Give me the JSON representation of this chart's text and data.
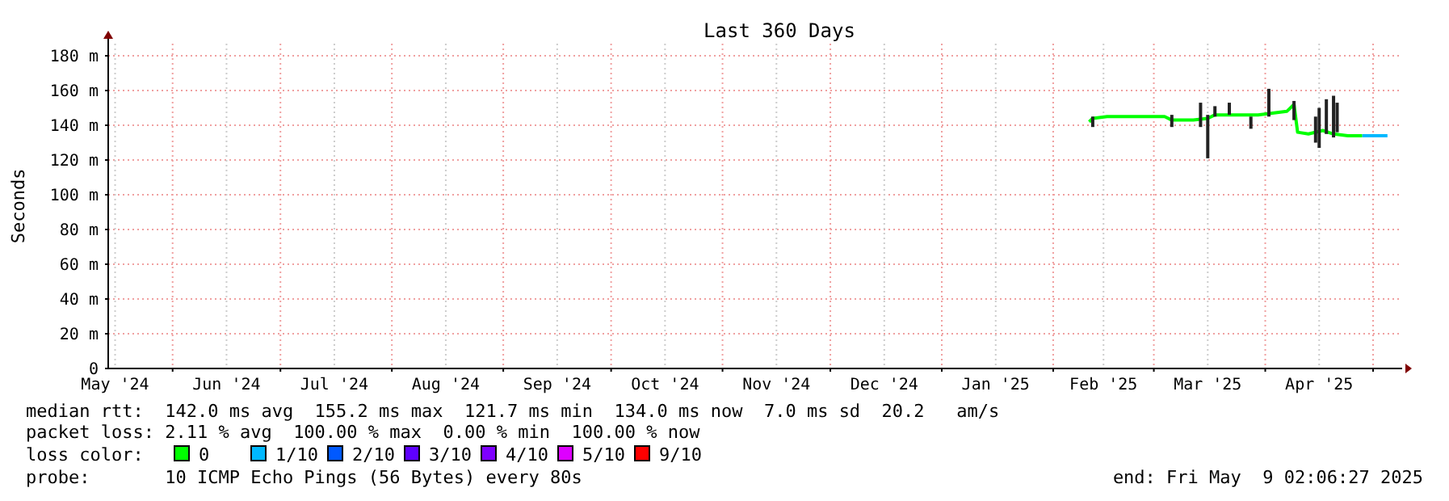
{
  "chart_data": {
    "type": "line",
    "title": "Last 360 Days",
    "ylabel": "Seconds",
    "xlim": [
      "2024-05-14T02:06",
      "2025-05-09T02:06"
    ],
    "ylim": [
      0,
      187
    ],
    "yticks": [
      {
        "value": 0,
        "label": "0"
      },
      {
        "value": 20,
        "label": "20 m"
      },
      {
        "value": 40,
        "label": "40 m"
      },
      {
        "value": 60,
        "label": "60 m"
      },
      {
        "value": 80,
        "label": "80 m"
      },
      {
        "value": 100,
        "label": "100 m"
      },
      {
        "value": 120,
        "label": "120 m"
      },
      {
        "value": 140,
        "label": "140 m"
      },
      {
        "value": 160,
        "label": "160 m"
      },
      {
        "value": 180,
        "label": "180 m"
      }
    ],
    "xticks": [
      {
        "value": "2024-05-16",
        "label": "May '24"
      },
      {
        "value": "2024-06-01",
        "label": null
      },
      {
        "value": "2024-06-16",
        "label": "Jun '24"
      },
      {
        "value": "2024-07-01",
        "label": null
      },
      {
        "value": "2024-07-16",
        "label": "Jul '24"
      },
      {
        "value": "2024-08-01",
        "label": null
      },
      {
        "value": "2024-08-16",
        "label": "Aug '24"
      },
      {
        "value": "2024-09-01",
        "label": null
      },
      {
        "value": "2024-09-16",
        "label": "Sep '24"
      },
      {
        "value": "2024-10-01",
        "label": null
      },
      {
        "value": "2024-10-16",
        "label": "Oct '24"
      },
      {
        "value": "2024-11-01",
        "label": null
      },
      {
        "value": "2024-11-16",
        "label": "Nov '24"
      },
      {
        "value": "2024-12-01",
        "label": null
      },
      {
        "value": "2024-12-16",
        "label": "Dec '24"
      },
      {
        "value": "2025-01-01",
        "label": null
      },
      {
        "value": "2025-01-16",
        "label": "Jan '25"
      },
      {
        "value": "2025-02-01",
        "label": null
      },
      {
        "value": "2025-02-15",
        "label": "Feb '25"
      },
      {
        "value": "2025-03-01",
        "label": null
      },
      {
        "value": "2025-03-16",
        "label": "Mar '25"
      },
      {
        "value": "2025-04-01",
        "label": null
      },
      {
        "value": "2025-04-16",
        "label": "Apr '25"
      },
      {
        "value": "2025-05-01",
        "label": null
      }
    ],
    "grid": true,
    "series": [
      {
        "type": "bar",
        "color": "#222222",
        "x": [
          "2025-02-12",
          "2025-03-06",
          "2025-03-14",
          "2025-03-16",
          "2025-03-18",
          "2025-03-22",
          "2025-03-28",
          "2025-04-02",
          "2025-04-09",
          "2025-04-15",
          "2025-04-16",
          "2025-04-18",
          "2025-04-20",
          "2025-04-21"
        ],
        "base": [
          139,
          139,
          139,
          121,
          145,
          146,
          138,
          145,
          143,
          130,
          127,
          135,
          133,
          136
        ],
        "values": [
          6,
          7,
          14,
          25,
          6,
          7,
          7,
          16,
          11,
          15,
          23,
          20,
          24,
          17
        ]
      },
      {
        "color": "#00ff00",
        "x": [
          "2025-02-11",
          "2025-02-12",
          "2025-02-16",
          "2025-02-22",
          "2025-02-28",
          "2025-03-04",
          "2025-03-06",
          "2025-03-12",
          "2025-03-16",
          "2025-03-18",
          "2025-03-24",
          "2025-03-30",
          "2025-04-03",
          "2025-04-07",
          "2025-04-09",
          "2025-04-10",
          "2025-04-13",
          "2025-04-17",
          "2025-04-20",
          "2025-04-24",
          "2025-04-28"
        ],
        "values": [
          142,
          144,
          145,
          145,
          145,
          145,
          143,
          143,
          144,
          146,
          146,
          146,
          147,
          148,
          152,
          136,
          135,
          137,
          135,
          134,
          134
        ]
      },
      {
        "type": "line",
        "color": "#00b8ff",
        "x": [
          "2025-04-28",
          "2025-05-01",
          "2025-05-05"
        ],
        "values": [
          134,
          134,
          134
        ]
      }
    ],
    "annotations": [
      "median rtt:  142.0 ms avg  155.2 ms max  121.7 ms min  134.0 ms now  7.0 ms sd  20.2   am/s",
      "packet loss: 2.11 % avg  100.00 % max  0.00 % min  100.00 % now",
      "loss color:",
      "0",
      "1/10",
      "2/10",
      "3/10",
      "4/10",
      "5/10",
      "9/10",
      "probe:       10 ICMP Echo Pings (56 Bytes) every 80s",
      "end: Fri May  9 02:06:27 2025"
    ]
  }
}
